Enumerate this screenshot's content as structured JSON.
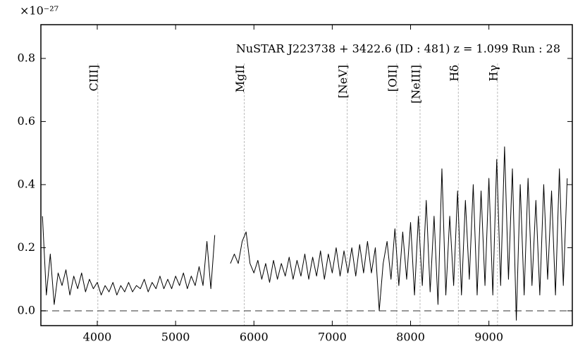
{
  "chart_data": {
    "type": "line",
    "title": "NuSTAR J223738 + 3422.6 (ID : 481)   z = 1.099   Run : 28",
    "y_scale_label": "×10⁻²⁷",
    "x": [
      3300,
      3350,
      3400,
      3450,
      3500,
      3550,
      3600,
      3650,
      3700,
      3750,
      3800,
      3850,
      3900,
      3950,
      4000,
      4050,
      4100,
      4150,
      4200,
      4250,
      4300,
      4350,
      4400,
      4450,
      4500,
      4550,
      4600,
      4650,
      4700,
      4750,
      4800,
      4850,
      4900,
      4950,
      5000,
      5050,
      5100,
      5150,
      5200,
      5250,
      5300,
      5350,
      5400,
      5450,
      5500,
      5550,
      5600,
      5650,
      5700,
      5750,
      5800,
      5850,
      5900,
      5950,
      6000,
      6050,
      6100,
      6150,
      6200,
      6250,
      6300,
      6350,
      6400,
      6450,
      6500,
      6550,
      6600,
      6650,
      6700,
      6750,
      6800,
      6850,
      6900,
      6950,
      7000,
      7050,
      7100,
      7150,
      7200,
      7250,
      7300,
      7350,
      7400,
      7450,
      7500,
      7550,
      7600,
      7650,
      7700,
      7750,
      7800,
      7850,
      7900,
      7950,
      8000,
      8050,
      8100,
      8150,
      8200,
      8250,
      8300,
      8350,
      8400,
      8450,
      8500,
      8550,
      8600,
      8650,
      8700,
      8750,
      8800,
      8850,
      8900,
      8950,
      9000,
      9050,
      9100,
      9150,
      9200,
      9250,
      9300,
      9350,
      9400,
      9450,
      9500,
      9550,
      9600,
      9650,
      9700,
      9750,
      9800,
      9850,
      9900,
      9950,
      10000
    ],
    "series": [
      {
        "color": "#000000",
        "values": [
          0.3,
          0.05,
          0.18,
          0.02,
          0.12,
          0.08,
          0.13,
          0.05,
          0.11,
          0.07,
          0.12,
          0.06,
          0.1,
          0.07,
          0.09,
          0.05,
          0.08,
          0.06,
          0.09,
          0.05,
          0.08,
          0.06,
          0.09,
          0.06,
          0.08,
          0.07,
          0.1,
          0.06,
          0.09,
          0.07,
          0.11,
          0.07,
          0.1,
          0.07,
          0.11,
          0.08,
          0.12,
          0.07,
          0.11,
          0.08,
          0.14,
          0.08,
          0.22,
          0.07,
          0.24,
          null,
          null,
          null,
          0.15,
          0.18,
          0.15,
          0.22,
          0.25,
          0.15,
          0.12,
          0.16,
          0.1,
          0.15,
          0.09,
          0.16,
          0.1,
          0.15,
          0.11,
          0.17,
          0.1,
          0.16,
          0.11,
          0.18,
          0.1,
          0.17,
          0.11,
          0.19,
          0.1,
          0.18,
          0.12,
          0.2,
          0.11,
          0.19,
          0.12,
          0.2,
          0.11,
          0.21,
          0.12,
          0.22,
          0.12,
          0.2,
          0.0,
          0.15,
          0.22,
          0.1,
          0.26,
          0.08,
          0.25,
          0.1,
          0.28,
          0.05,
          0.3,
          0.08,
          0.35,
          0.06,
          0.3,
          0.02,
          0.45,
          0.05,
          0.3,
          0.08,
          0.38,
          0.05,
          0.35,
          0.1,
          0.4,
          0.05,
          0.38,
          0.08,
          0.42,
          0.05,
          0.48,
          0.08,
          0.52,
          0.1,
          0.45,
          -0.03,
          0.4,
          0.05,
          0.42,
          0.08,
          0.35,
          0.05,
          0.4,
          0.1,
          0.38,
          0.05,
          0.45,
          0.08,
          0.42
        ]
      }
    ],
    "reference_line": 0,
    "emission_lines": [
      {
        "label": "CIII]",
        "x": 4007
      },
      {
        "label": "MgII",
        "x": 5877
      },
      {
        "label": "[NeV]",
        "x": 7191
      },
      {
        "label": "[OII]",
        "x": 7823
      },
      {
        "label": "[NeIII]",
        "x": 8121
      },
      {
        "label": "Hδ",
        "x": 8610
      },
      {
        "label": "Hγ",
        "x": 9110
      }
    ],
    "xlim": [
      3280,
      10065
    ],
    "ylim": [
      -0.047,
      0.907
    ],
    "xticks": [
      4000,
      5000,
      6000,
      7000,
      8000,
      9000
    ],
    "yticks": [
      {
        "value": 0,
        "label": "0.0"
      },
      0.2,
      0.4,
      0.6,
      0.8
    ]
  }
}
